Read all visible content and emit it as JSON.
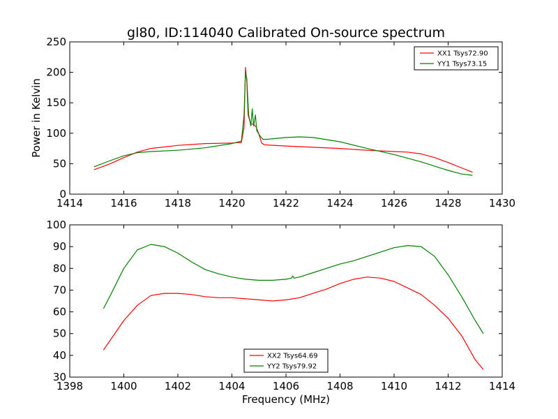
{
  "figure": {
    "title": "gl80, ID:114040 Calibrated On-source spectrum",
    "ylabel": "Power in Kelvin",
    "xlabel": "Frequency (MHz)"
  },
  "chart_data": [
    {
      "type": "line",
      "xlim": [
        1414,
        1430
      ],
      "ylim": [
        0,
        250
      ],
      "xticks": [
        "1414",
        "1416",
        "1418",
        "1420",
        "1422",
        "1424",
        "1426",
        "1428",
        "1430"
      ],
      "yticks": [
        "0",
        "50",
        "100",
        "150",
        "200",
        "250"
      ],
      "legend_position": "top-right",
      "grid": false,
      "series": [
        {
          "name": "XX1 Tsys72.90",
          "color": "#ff0000",
          "x": [
            1414.9,
            1415.5,
            1416.0,
            1416.5,
            1417.0,
            1418.0,
            1419.0,
            1420.0,
            1420.35,
            1420.45,
            1420.5,
            1420.55,
            1420.6,
            1420.7,
            1420.8,
            1420.9,
            1421.0,
            1421.1,
            1421.2,
            1422.0,
            1423.0,
            1424.0,
            1425.0,
            1426.0,
            1426.5,
            1427.0,
            1427.5,
            1428.0,
            1428.5,
            1428.9
          ],
          "y": [
            40,
            50,
            60,
            69,
            75,
            80,
            83,
            84,
            85,
            110,
            208,
            185,
            130,
            115,
            115,
            110,
            98,
            84,
            81,
            79,
            77,
            75,
            72,
            70,
            69,
            66,
            60,
            52,
            43,
            36
          ]
        },
        {
          "name": "YY1 Tsys73.15",
          "color": "#008000",
          "x": [
            1414.9,
            1415.5,
            1416.0,
            1416.5,
            1417.0,
            1418.0,
            1419.0,
            1420.0,
            1420.35,
            1420.45,
            1420.5,
            1420.55,
            1420.62,
            1420.7,
            1420.75,
            1420.8,
            1420.87,
            1420.92,
            1420.98,
            1421.05,
            1421.15,
            1421.3,
            1422.0,
            1422.5,
            1423.0,
            1424.0,
            1425.0,
            1426.0,
            1426.5,
            1427.0,
            1427.5,
            1428.0,
            1428.5,
            1428.9
          ],
          "y": [
            45,
            55,
            63,
            68,
            70,
            72,
            76,
            83,
            87,
            130,
            200,
            190,
            130,
            112,
            140,
            112,
            130,
            104,
            100,
            95,
            90,
            90,
            93,
            94,
            93,
            86,
            75,
            65,
            59,
            53,
            46,
            39,
            33,
            31
          ]
        }
      ]
    },
    {
      "type": "line",
      "xlim": [
        1398,
        1414
      ],
      "ylim": [
        30,
        100
      ],
      "xticks": [
        "1398",
        "1400",
        "1402",
        "1404",
        "1406",
        "1408",
        "1410",
        "1412",
        "1414"
      ],
      "yticks": [
        "30",
        "40",
        "50",
        "60",
        "70",
        "80",
        "90",
        "100"
      ],
      "legend_position": "bottom-center",
      "grid": false,
      "series": [
        {
          "name": "XX2 Tsys64.69",
          "color": "#ff0000",
          "x": [
            1399.25,
            1399.5,
            1400.0,
            1400.5,
            1401.0,
            1401.5,
            1402.0,
            1402.5,
            1403.0,
            1403.5,
            1404.0,
            1404.5,
            1405.0,
            1405.5,
            1406.0,
            1406.5,
            1407.0,
            1407.5,
            1408.0,
            1408.5,
            1409.0,
            1409.5,
            1410.0,
            1410.5,
            1411.0,
            1411.5,
            1412.0,
            1412.5,
            1413.0,
            1413.3
          ],
          "y": [
            42.5,
            47,
            56,
            63,
            67.5,
            68.5,
            68.5,
            68,
            67,
            66.5,
            66.5,
            66,
            65.5,
            65,
            65.5,
            66.5,
            68.5,
            70.5,
            73,
            75,
            76,
            75.5,
            74,
            71,
            68,
            63,
            57,
            49,
            38,
            33.5
          ]
        },
        {
          "name": "YY2 Tsys79.92",
          "color": "#008000",
          "x": [
            1399.25,
            1399.5,
            1400.0,
            1400.5,
            1401.0,
            1401.5,
            1402.0,
            1402.5,
            1403.0,
            1403.5,
            1404.0,
            1404.5,
            1405.0,
            1405.5,
            1406.0,
            1406.2,
            1406.25,
            1406.3,
            1406.5,
            1407.0,
            1407.5,
            1408.0,
            1408.5,
            1409.0,
            1409.5,
            1410.0,
            1410.5,
            1411.0,
            1411.5,
            1412.0,
            1412.5,
            1413.0,
            1413.3
          ],
          "y": [
            61.5,
            67.5,
            80,
            88.5,
            91,
            90,
            87,
            83,
            79.5,
            77.5,
            76,
            75,
            74.5,
            74.5,
            75,
            75.5,
            76.5,
            75.5,
            76,
            78,
            80,
            82,
            83.5,
            85.5,
            87.5,
            89.5,
            90.5,
            90,
            85.5,
            77,
            67,
            56,
            50
          ]
        }
      ]
    }
  ]
}
